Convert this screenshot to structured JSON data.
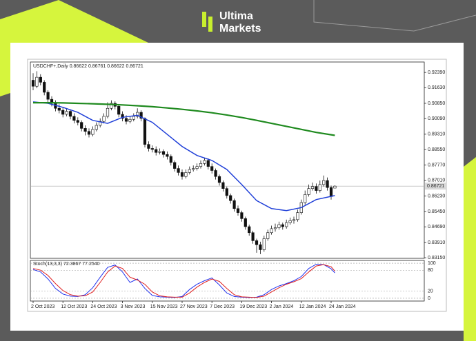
{
  "brand": {
    "line1": "Ultima",
    "line2": "Markets"
  },
  "chart_data": {
    "type": "candlestick",
    "title": "USDCHF+,Daily 0.86622 0.86761 0.86622 0.86721",
    "ylim": [
      0.8312,
      0.9291
    ],
    "yticks": [
      {
        "value": 0.9239,
        "label": "0.92390"
      },
      {
        "value": 0.9163,
        "label": "0.91630"
      },
      {
        "value": 0.9085,
        "label": "0.90850"
      },
      {
        "value": 0.9009,
        "label": "0.90090"
      },
      {
        "value": 0.8931,
        "label": "0.89310"
      },
      {
        "value": 0.8855,
        "label": "0.88550"
      },
      {
        "value": 0.8777,
        "label": "0.87770"
      },
      {
        "value": 0.8701,
        "label": "0.87010"
      },
      {
        "value": 0.8623,
        "label": "0.86230"
      },
      {
        "value": 0.8545,
        "label": "0.85450"
      },
      {
        "value": 0.8469,
        "label": "0.84690"
      },
      {
        "value": 0.8391,
        "label": "0.83910"
      },
      {
        "value": 0.8315,
        "label": "0.83150"
      }
    ],
    "last_price": {
      "value": 0.86721,
      "label": "0.86721"
    },
    "xticks": [
      {
        "value": 0,
        "label": "2 Oct 2023"
      },
      {
        "value": 8,
        "label": "12 Oct 2023"
      },
      {
        "value": 16,
        "label": "24 Oct 2023"
      },
      {
        "value": 24,
        "label": "3 Nov 2023"
      },
      {
        "value": 32,
        "label": "15 Nov 2023"
      },
      {
        "value": 40,
        "label": "27 Nov 2023"
      },
      {
        "value": 48,
        "label": "7 Dec 2023"
      },
      {
        "value": 56,
        "label": "19 Dec 2023"
      },
      {
        "value": 64,
        "label": "2 Jan 2024"
      },
      {
        "value": 72,
        "label": "12 Jan 2024"
      },
      {
        "value": 80,
        "label": "24 Jan 2024"
      }
    ],
    "open": [
      0.92,
      0.917,
      0.9215,
      0.919,
      0.914,
      0.9105,
      0.9085,
      0.906,
      0.905,
      0.903,
      0.9045,
      0.902,
      0.9,
      0.899,
      0.896,
      0.8945,
      0.893,
      0.8955,
      0.8975,
      0.8995,
      0.902,
      0.906,
      0.9085,
      0.907,
      0.903,
      0.901,
      0.8995,
      0.9005,
      0.902,
      0.904,
      0.901,
      0.888,
      0.886,
      0.8855,
      0.884,
      0.8845,
      0.883,
      0.882,
      0.879,
      0.876,
      0.874,
      0.872,
      0.874,
      0.8755,
      0.876,
      0.877,
      0.8785,
      0.88,
      0.877,
      0.875,
      0.872,
      0.869,
      0.866,
      0.8625,
      0.86,
      0.856,
      0.854,
      0.851,
      0.847,
      0.844,
      0.84,
      0.838,
      0.8355,
      0.841,
      0.844,
      0.846,
      0.8465,
      0.848,
      0.847,
      0.849,
      0.85,
      0.8505,
      0.854,
      0.859,
      0.863,
      0.866,
      0.867,
      0.865,
      0.868,
      0.87,
      0.8665,
      0.86622
    ],
    "high": [
      0.9235,
      0.9245,
      0.923,
      0.92,
      0.915,
      0.912,
      0.91,
      0.908,
      0.9065,
      0.906,
      0.9055,
      0.9035,
      0.9015,
      0.9,
      0.8975,
      0.896,
      0.897,
      0.899,
      0.901,
      0.9035,
      0.909,
      0.91,
      0.9095,
      0.908,
      0.9045,
      0.9025,
      0.902,
      0.9035,
      0.906,
      0.905,
      0.9015,
      0.8895,
      0.8875,
      0.887,
      0.886,
      0.8855,
      0.8845,
      0.883,
      0.88,
      0.8775,
      0.8755,
      0.8755,
      0.877,
      0.8775,
      0.8785,
      0.88,
      0.8815,
      0.881,
      0.8785,
      0.876,
      0.873,
      0.87,
      0.867,
      0.8635,
      0.861,
      0.8575,
      0.855,
      0.852,
      0.848,
      0.845,
      0.841,
      0.8395,
      0.8425,
      0.8455,
      0.8475,
      0.8485,
      0.8495,
      0.849,
      0.8505,
      0.8515,
      0.852,
      0.8555,
      0.8605,
      0.865,
      0.868,
      0.869,
      0.8685,
      0.87,
      0.8725,
      0.8715,
      0.8675,
      0.86761
    ],
    "low": [
      0.915,
      0.916,
      0.9175,
      0.9125,
      0.909,
      0.907,
      0.9045,
      0.9035,
      0.9015,
      0.902,
      0.9005,
      0.8985,
      0.8975,
      0.8945,
      0.8925,
      0.8915,
      0.892,
      0.8945,
      0.8965,
      0.8985,
      0.901,
      0.905,
      0.9055,
      0.9015,
      0.8995,
      0.898,
      0.8985,
      0.8995,
      0.901,
      0.8995,
      0.8865,
      0.8845,
      0.884,
      0.8825,
      0.883,
      0.8815,
      0.8805,
      0.8775,
      0.8745,
      0.8725,
      0.8705,
      0.871,
      0.873,
      0.8745,
      0.875,
      0.876,
      0.8775,
      0.8755,
      0.8735,
      0.8705,
      0.8675,
      0.8645,
      0.861,
      0.8585,
      0.8545,
      0.8525,
      0.8495,
      0.8455,
      0.8425,
      0.8385,
      0.834,
      0.8333,
      0.8345,
      0.84,
      0.843,
      0.8445,
      0.8455,
      0.8455,
      0.846,
      0.848,
      0.8485,
      0.8495,
      0.853,
      0.858,
      0.862,
      0.865,
      0.8635,
      0.864,
      0.867,
      0.865,
      0.8605,
      0.86622
    ],
    "close": [
      0.917,
      0.9215,
      0.919,
      0.914,
      0.9105,
      0.9085,
      0.906,
      0.905,
      0.903,
      0.9045,
      0.902,
      0.9,
      0.899,
      0.896,
      0.8945,
      0.893,
      0.8955,
      0.8975,
      0.8995,
      0.902,
      0.906,
      0.9085,
      0.907,
      0.903,
      0.901,
      0.8995,
      0.9005,
      0.902,
      0.904,
      0.901,
      0.888,
      0.886,
      0.8855,
      0.884,
      0.8845,
      0.883,
      0.882,
      0.879,
      0.876,
      0.874,
      0.872,
      0.874,
      0.8755,
      0.876,
      0.877,
      0.8785,
      0.88,
      0.877,
      0.875,
      0.872,
      0.869,
      0.866,
      0.8625,
      0.86,
      0.856,
      0.854,
      0.851,
      0.847,
      0.844,
      0.84,
      0.838,
      0.8355,
      0.841,
      0.844,
      0.846,
      0.8465,
      0.848,
      0.847,
      0.849,
      0.85,
      0.8505,
      0.854,
      0.859,
      0.863,
      0.866,
      0.867,
      0.865,
      0.868,
      0.87,
      0.8665,
      0.862,
      0.86721
    ],
    "moving_averages": [
      {
        "color": "#1f3fd8",
        "x": [
          0,
          4,
          8,
          12,
          16,
          20,
          24,
          28,
          32,
          36,
          40,
          44,
          48,
          52,
          56,
          60,
          64,
          68,
          72,
          76,
          81
        ],
        "values": [
          0.9092,
          0.9085,
          0.9065,
          0.904,
          0.9,
          0.8985,
          0.9015,
          0.9025,
          0.899,
          0.893,
          0.887,
          0.8825,
          0.88,
          0.8755,
          0.868,
          0.86,
          0.856,
          0.855,
          0.8565,
          0.8605,
          0.8625
        ]
      },
      {
        "color": "#1f8a1f",
        "x": [
          0,
          4,
          8,
          12,
          16,
          20,
          24,
          28,
          32,
          36,
          40,
          44,
          48,
          52,
          56,
          60,
          64,
          68,
          72,
          76,
          81
        ],
        "values": [
          0.9088,
          0.9088,
          0.9087,
          0.9085,
          0.9083,
          0.908,
          0.9077,
          0.9073,
          0.9068,
          0.9062,
          0.9055,
          0.9047,
          0.9038,
          0.9027,
          0.9014,
          0.9,
          0.8985,
          0.897,
          0.8955,
          0.894,
          0.8925
        ]
      }
    ],
    "stochastic": {
      "title": "Stoch(13,3,3) 72.3867 77.2540",
      "ylim": [
        -8,
        108
      ],
      "yticks": [
        100,
        80,
        20,
        0
      ],
      "series": [
        {
          "color": "#2233ee",
          "x": [
            0,
            2,
            4,
            6,
            8,
            10,
            12,
            14,
            16,
            18,
            20,
            22,
            24,
            26,
            28,
            30,
            32,
            34,
            36,
            38,
            40,
            42,
            44,
            46,
            48,
            50,
            52,
            54,
            56,
            58,
            60,
            62,
            64,
            66,
            68,
            70,
            72,
            74,
            76,
            78,
            80,
            81
          ],
          "values": [
            82,
            75,
            55,
            28,
            12,
            6,
            5,
            10,
            30,
            60,
            88,
            95,
            75,
            45,
            55,
            28,
            8,
            4,
            3,
            2,
            5,
            25,
            40,
            50,
            58,
            38,
            15,
            5,
            3,
            2,
            3,
            10,
            25,
            35,
            42,
            50,
            62,
            85,
            97,
            96,
            84,
            72.3867
          ]
        },
        {
          "color": "#e02020",
          "x": [
            0,
            2,
            4,
            6,
            8,
            10,
            12,
            14,
            16,
            18,
            20,
            22,
            24,
            26,
            28,
            30,
            32,
            34,
            36,
            38,
            40,
            42,
            44,
            46,
            48,
            50,
            52,
            54,
            56,
            58,
            60,
            62,
            64,
            66,
            68,
            70,
            72,
            74,
            76,
            78,
            80,
            81
          ],
          "values": [
            85,
            80,
            65,
            42,
            22,
            10,
            6,
            7,
            18,
            45,
            75,
            92,
            85,
            60,
            52,
            40,
            18,
            7,
            4,
            3,
            3,
            15,
            32,
            45,
            55,
            48,
            28,
            10,
            4,
            3,
            2,
            6,
            18,
            30,
            40,
            47,
            56,
            75,
            92,
            96,
            90,
            77.254
          ]
        }
      ]
    }
  }
}
